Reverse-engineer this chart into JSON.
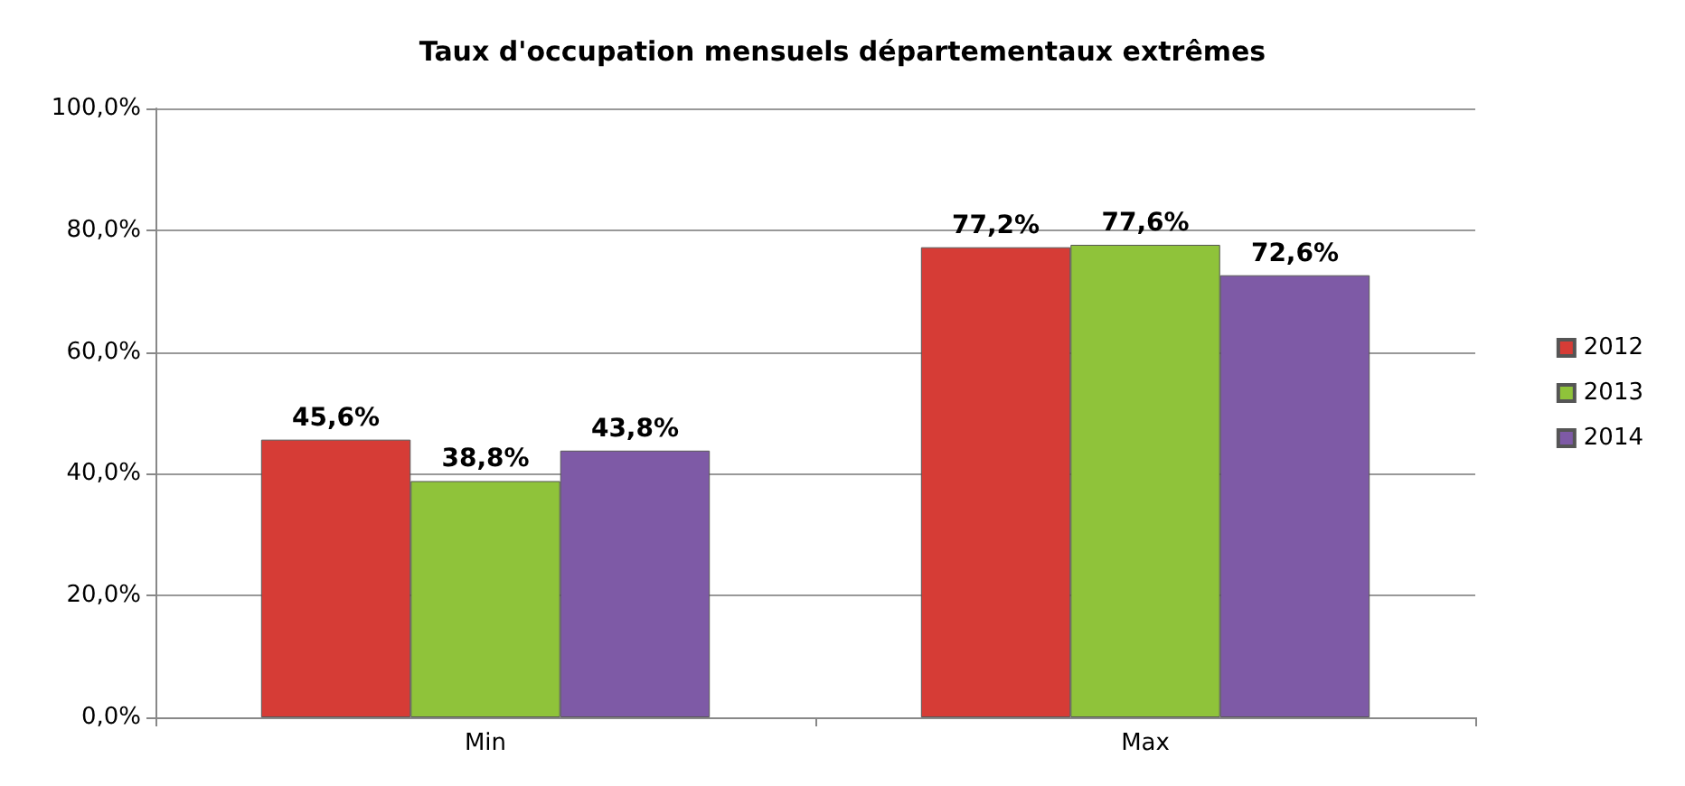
{
  "chart_data": {
    "type": "bar",
    "title": "Taux d'occupation mensuels départementaux extrêmes",
    "categories": [
      "Min",
      "Max"
    ],
    "series": [
      {
        "name": "2012",
        "color": "#d63c36",
        "values": [
          45.6,
          77.2
        ],
        "value_labels": [
          "45,6%",
          "77,2%"
        ]
      },
      {
        "name": "2013",
        "color": "#8fc33a",
        "values": [
          38.8,
          77.6
        ],
        "value_labels": [
          "38,8%",
          "77,6%"
        ]
      },
      {
        "name": "2014",
        "color": "#7e5aa6",
        "values": [
          43.8,
          72.6
        ],
        "value_labels": [
          "43,8%",
          "72,6%"
        ]
      }
    ],
    "ylim": [
      0,
      100
    ],
    "yticks": [
      {
        "value": 0,
        "label": "0,0%"
      },
      {
        "value": 20,
        "label": "20,0%"
      },
      {
        "value": 40,
        "label": "40,0%"
      },
      {
        "value": 60,
        "label": "60,0%"
      },
      {
        "value": 80,
        "label": "80,0%"
      },
      {
        "value": 100,
        "label": "100,0%"
      }
    ],
    "grid": "y",
    "legend": "right"
  }
}
